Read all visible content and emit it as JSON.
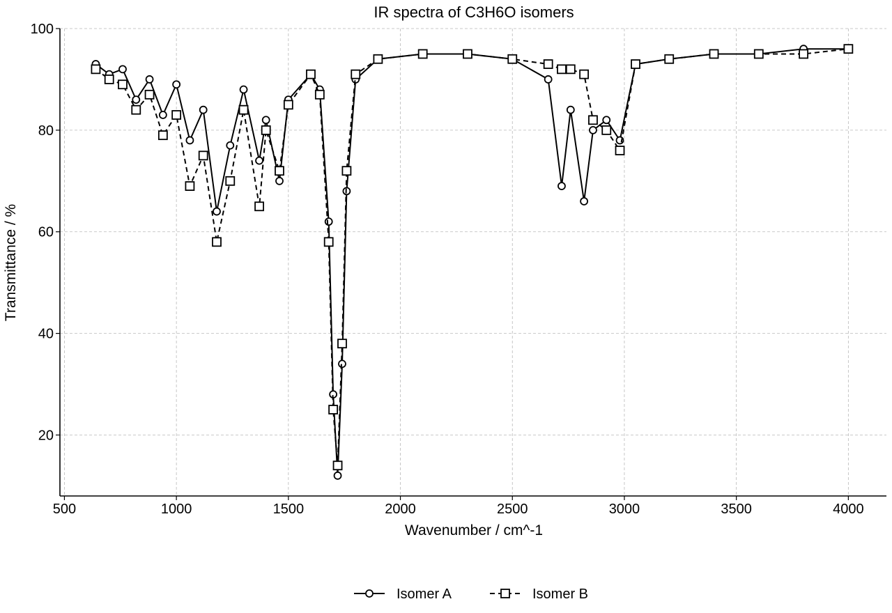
{
  "chart_data": {
    "type": "line",
    "title": "IR spectra of C3H6O isomers",
    "xlabel": "Wavenumber / cm^-1",
    "ylabel": "Transmittance / %",
    "xlim": [
      480,
      4170
    ],
    "ylim": [
      8,
      100
    ],
    "xticks": [
      500,
      1000,
      1500,
      2000,
      2500,
      3000,
      3500,
      4000
    ],
    "yticks": [
      20,
      40,
      60,
      80,
      100
    ],
    "grid": true,
    "legend_position": "bottom-center",
    "series": [
      {
        "name": "Isomer A",
        "line_style": "solid",
        "marker": "circle",
        "color": "#000000",
        "x": [
          640,
          700,
          760,
          820,
          880,
          940,
          1000,
          1060,
          1120,
          1180,
          1240,
          1300,
          1370,
          1400,
          1460,
          1500,
          1600,
          1640,
          1680,
          1700,
          1720,
          1740,
          1760,
          1800,
          1900,
          2100,
          2300,
          2500,
          2660,
          2720,
          2760,
          2820,
          2860,
          2920,
          2980,
          3050,
          3200,
          3400,
          3600,
          3800,
          4000
        ],
        "y": [
          93,
          91,
          92,
          86,
          90,
          83,
          89,
          78,
          84,
          64,
          77,
          88,
          74,
          82,
          70,
          86,
          91,
          88,
          62,
          28,
          12,
          34,
          68,
          90,
          94,
          95,
          95,
          94,
          90,
          69,
          84,
          66,
          80,
          82,
          78,
          93,
          94,
          95,
          95,
          96,
          96
        ]
      },
      {
        "name": "Isomer B",
        "line_style": "dashed",
        "marker": "square",
        "color": "#000000",
        "x": [
          640,
          700,
          760,
          820,
          880,
          940,
          1000,
          1060,
          1120,
          1180,
          1240,
          1300,
          1370,
          1400,
          1460,
          1500,
          1600,
          1640,
          1680,
          1700,
          1720,
          1740,
          1760,
          1800,
          1900,
          2100,
          2300,
          2500,
          2660,
          2720,
          2760,
          2820,
          2860,
          2920,
          2980,
          3050,
          3200,
          3400,
          3600,
          3800,
          4000
        ],
        "y": [
          92,
          90,
          89,
          84,
          87,
          79,
          83,
          69,
          75,
          58,
          70,
          84,
          65,
          80,
          72,
          85,
          91,
          87,
          58,
          25,
          14,
          38,
          72,
          91,
          94,
          95,
          95,
          94,
          93,
          92,
          92,
          91,
          82,
          80,
          76,
          93,
          94,
          95,
          95,
          95,
          96
        ]
      }
    ]
  }
}
